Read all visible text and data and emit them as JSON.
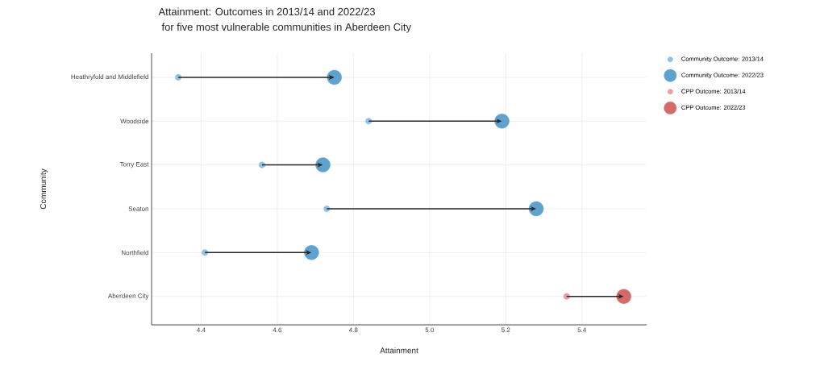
{
  "chart_data": {
    "type": "bubble",
    "orientation": "horizontal",
    "title": "Attainment: Outcomes in 2013/14 and 2022/23",
    "subtitle": "for five most vulnerable communities in Aberdeen City",
    "xlabel": "Attainment",
    "ylabel": "Community",
    "categories": [
      "Heathryfold and Middlefield",
      "Woodside",
      "Torry East",
      "Seaton",
      "Northfield",
      "Aberdeen City"
    ],
    "series": [
      {
        "name": "Community Outcome: 2013/14",
        "color": "#92c1e3",
        "values": [
          4.34,
          4.84,
          4.56,
          4.73,
          4.41,
          null
        ],
        "sizes": [
          0.18,
          0.18,
          0.18,
          0.18,
          0.18,
          null
        ]
      },
      {
        "name": "Community Outcome: 2022/23",
        "color": "#5fa2ce",
        "values": [
          4.75,
          5.19,
          4.72,
          5.28,
          4.69,
          null
        ],
        "sizes": [
          1,
          1,
          1,
          1,
          1,
          null
        ]
      },
      {
        "name": "CPP Outcome: 2013/14",
        "color": "#e6a0a0",
        "values": [
          null,
          null,
          null,
          null,
          null,
          5.36
        ],
        "sizes": [
          null,
          null,
          null,
          null,
          null,
          0.18
        ]
      },
      {
        "name": "CPP Outcome: 2022/23",
        "color": "#d46a69",
        "values": [
          null,
          null,
          null,
          null,
          null,
          5.51
        ],
        "sizes": [
          null,
          null,
          null,
          null,
          null,
          1
        ]
      }
    ],
    "xlim": [
      4.27,
      5.57
    ],
    "xticks": [
      4.4,
      4.6,
      4.8,
      {
        "value": 5.0,
        "label": "5.0"
      },
      5.2,
      5.4
    ],
    "grid": true,
    "legend": "top right"
  }
}
